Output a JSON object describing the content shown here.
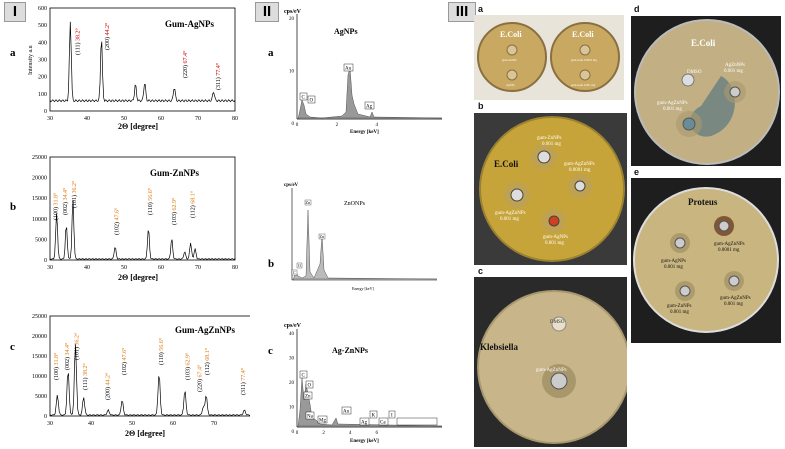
{
  "panels": {
    "I": "I",
    "II": "II",
    "III": "III"
  },
  "xrd": {
    "a": {
      "letter": "a",
      "title": "Gum-AgNPs",
      "ylabel": "Intensity a.u",
      "xlabel": "2Θ [degree]",
      "yticks": [
        "600",
        "500",
        "400",
        "300",
        "200",
        "100",
        "0"
      ],
      "xticks": [
        "30",
        "40",
        "50",
        "60",
        "70",
        "80"
      ],
      "peaks": [
        {
          "hkl": "(111)",
          "angle": "38.2°"
        },
        {
          "hkl": "(200)",
          "angle": "44.2°"
        },
        {
          "hkl": "(220)",
          "angle": "67.4°"
        },
        {
          "hkl": "(311)",
          "angle": "77.4°"
        }
      ]
    },
    "b": {
      "letter": "b",
      "title": "Gum-ZnNPs",
      "xlabel": "2Θ [degree]",
      "yticks": [
        "25000",
        "20000",
        "15000",
        "10000",
        "5000",
        "0"
      ],
      "xticks": [
        "30",
        "40",
        "50",
        "60",
        "70",
        "80"
      ],
      "peaks": [
        {
          "hkl": "(100)",
          "angle": "31.8°"
        },
        {
          "hkl": "(002)",
          "angle": "34.4°"
        },
        {
          "hkl": "(101)",
          "angle": "36.2°"
        },
        {
          "hkl": "(102)",
          "angle": "47.6°"
        },
        {
          "hkl": "(110)",
          "angle": "56.6°"
        },
        {
          "hkl": "(103)",
          "angle": "62.9°"
        },
        {
          "hkl": "(112)",
          "angle": "68.1°"
        }
      ]
    },
    "c": {
      "letter": "c",
      "title": "Gum-AgZnNPs",
      "xlabel": "2Θ [degree]",
      "yticks": [
        "25000",
        "20000",
        "15000",
        "10000",
        "5000",
        "0"
      ],
      "xticks": [
        "30",
        "40",
        "50",
        "60",
        "70",
        "80"
      ],
      "peaks": [
        {
          "hkl": "(100)",
          "angle": "31.8°"
        },
        {
          "hkl": "(002)",
          "angle": "34.4°"
        },
        {
          "hkl": "(101)",
          "angle": "36.2°"
        },
        {
          "hkl": "(111)",
          "angle": "38.2°"
        },
        {
          "hkl": "(200)",
          "angle": "44.2°"
        },
        {
          "hkl": "(102)",
          "angle": "47.6°"
        },
        {
          "hkl": "(110)",
          "angle": "56.6°"
        },
        {
          "hkl": "(103)",
          "angle": "62.9°"
        },
        {
          "hkl": "(220)",
          "angle": "67.4°"
        },
        {
          "hkl": "(112)",
          "angle": "68.1°"
        },
        {
          "hkl": "(311)",
          "angle": "77.4°"
        }
      ]
    }
  },
  "edx": {
    "a": {
      "letter": "a",
      "unit": "cps/eV",
      "title": "AgNPs",
      "xlabel": "Energy [keV]",
      "yticks": [
        "20",
        "10",
        "0"
      ],
      "xticks": [
        "0",
        "2",
        "4"
      ],
      "elements": [
        "C",
        "O",
        "Au",
        "Ag"
      ]
    },
    "b": {
      "letter": "b",
      "unit": "cps/eV",
      "title": "ZnONPs",
      "xlabel": "Energy [keV]",
      "elements": [
        "Zn",
        "Zn",
        "O",
        "C"
      ]
    },
    "c": {
      "letter": "c",
      "unit": "cps/eV",
      "title": "Ag-ZnNPs",
      "xlabel": "Energy [keV]",
      "yticks": [
        "40",
        "30",
        "20",
        "10",
        "0"
      ],
      "xticks": [
        "0",
        "2",
        "4",
        "6"
      ],
      "elements": [
        "C",
        "O",
        "Zn",
        "Na",
        "Mg",
        "Au",
        "Ag",
        "K",
        "Ca",
        "I"
      ]
    }
  },
  "plates": {
    "a": {
      "letter": "a",
      "left_title": "E.Coli",
      "right_title": "E.Coli",
      "left_labels": [
        "gum-ZnNPs",
        "AgNPs"
      ],
      "right_labels": [
        "gum-resin 0.0001 mg",
        "gum-resin 0.001 mg"
      ]
    },
    "b": {
      "letter": "b",
      "title": "E.Coli",
      "labels": [
        "gum-ZnNPs\n0.001 mg",
        "gum-AgZnNPs\n0.0001 mg",
        "gum-AgZnNPs\n0.001 mg",
        "gum-AgNPs\n0.001 mg"
      ]
    },
    "c": {
      "letter": "c",
      "title": "Klebsiella",
      "labels": [
        "DMSO",
        "gum-AgZnNPs"
      ]
    },
    "d": {
      "letter": "d",
      "title": "E.Coli",
      "labels": [
        "DMSO",
        "AgZnNPs\n0.001 mg",
        "gum-AgZnNPs\n0.001 mg"
      ]
    },
    "e": {
      "letter": "e",
      "title": "Proteus",
      "labels": [
        "gum-AgNPs\n0.001 mg",
        "gum-AgZnNPs\n0.0001 mg",
        "gum-ZnNPs\n0.001 mg",
        "gum-AgZnNPs\n0.001 mg"
      ]
    }
  }
}
